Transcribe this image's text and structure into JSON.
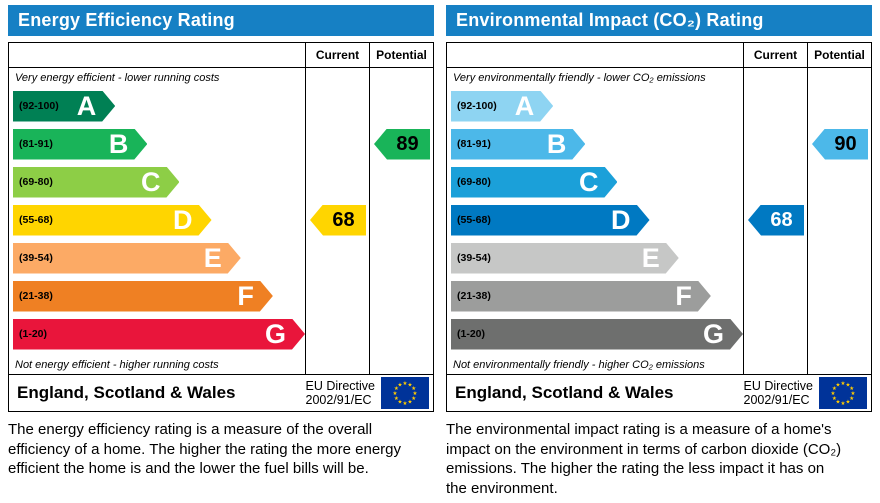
{
  "colors": {
    "header_bg": "#1680c4",
    "header_text": "#ffffff",
    "border": "#000000",
    "eu_flag_bg": "#003399",
    "eu_star": "#ffcc00"
  },
  "panels": [
    {
      "title": "Energy Efficiency Rating",
      "top_note": "Very energy efficient - lower running costs",
      "bottom_note": "Not energy efficient - higher running costs",
      "columns": {
        "current": "Current",
        "potential": "Potential"
      },
      "bands": [
        {
          "letter": "A",
          "range": "(92-100)",
          "color": "#008054",
          "width_pct": 35
        },
        {
          "letter": "B",
          "range": "(81-91)",
          "color": "#19b459",
          "width_pct": 46
        },
        {
          "letter": "C",
          "range": "(69-80)",
          "color": "#8dce46",
          "width_pct": 57
        },
        {
          "letter": "D",
          "range": "(55-68)",
          "color": "#ffd500",
          "width_pct": 68
        },
        {
          "letter": "E",
          "range": "(39-54)",
          "color": "#fcaa65",
          "width_pct": 78
        },
        {
          "letter": "F",
          "range": "(21-38)",
          "color": "#ef8023",
          "width_pct": 89
        },
        {
          "letter": "G",
          "range": "(1-20)",
          "color": "#e9153b",
          "width_pct": 100
        }
      ],
      "current": {
        "value": "68",
        "band_index": 3,
        "color": "#ffd500",
        "text_color": "#000000"
      },
      "potential": {
        "value": "89",
        "band_index": 1,
        "color": "#19b459",
        "text_color": "#000000"
      },
      "footer": {
        "region": "England, Scotland & Wales",
        "directive_line1": "EU Directive",
        "directive_line2": "2002/91/EC"
      },
      "description": "The energy efficiency rating is a measure of the overall efficiency of a home. The higher the rating the more energy efficient the home is and the lower the fuel bills will be."
    },
    {
      "title": "Environmental Impact (CO₂) Rating",
      "top_note": "Very environmentally friendly - lower CO₂ emissions",
      "bottom_note": "Not environmentally friendly - higher CO₂ emissions",
      "columns": {
        "current": "Current",
        "potential": "Potential"
      },
      "bands": [
        {
          "letter": "A",
          "range": "(92-100)",
          "color": "#8ed4f2",
          "width_pct": 35
        },
        {
          "letter": "B",
          "range": "(81-91)",
          "color": "#4cb8e9",
          "width_pct": 46
        },
        {
          "letter": "C",
          "range": "(69-80)",
          "color": "#1ba0d9",
          "width_pct": 57
        },
        {
          "letter": "D",
          "range": "(55-68)",
          "color": "#0079c2",
          "width_pct": 68
        },
        {
          "letter": "E",
          "range": "(39-54)",
          "color": "#c6c7c6",
          "width_pct": 78
        },
        {
          "letter": "F",
          "range": "(21-38)",
          "color": "#9c9d9c",
          "width_pct": 89
        },
        {
          "letter": "G",
          "range": "(1-20)",
          "color": "#6e6f6e",
          "width_pct": 100
        }
      ],
      "current": {
        "value": "68",
        "band_index": 3,
        "color": "#0079c2",
        "text_color": "#ffffff"
      },
      "potential": {
        "value": "90",
        "band_index": 1,
        "color": "#4cb8e9",
        "text_color": "#000000"
      },
      "footer": {
        "region": "England, Scotland & Wales",
        "directive_line1": "EU Directive",
        "directive_line2": "2002/91/EC"
      },
      "description": "The environmental impact rating is a measure of a home's impact on the environment in terms of carbon dioxide (CO₂) emissions. The higher the rating the less impact it has on the environment."
    }
  ],
  "chart_data": [
    {
      "type": "bar",
      "title": "Energy Efficiency Rating",
      "categories": [
        "A (92-100)",
        "B (81-91)",
        "C (69-80)",
        "D (55-68)",
        "E (39-54)",
        "F (21-38)",
        "G (1-20)"
      ],
      "scale": [
        1,
        100
      ],
      "series": [
        {
          "name": "Current",
          "value": 68,
          "band": "D"
        },
        {
          "name": "Potential",
          "value": 89,
          "band": "B"
        }
      ],
      "annotations": [
        "Very energy efficient - lower running costs",
        "Not energy efficient - higher running costs"
      ]
    },
    {
      "type": "bar",
      "title": "Environmental Impact (CO₂) Rating",
      "categories": [
        "A (92-100)",
        "B (81-91)",
        "C (69-80)",
        "D (55-68)",
        "E (39-54)",
        "F (21-38)",
        "G (1-20)"
      ],
      "scale": [
        1,
        100
      ],
      "series": [
        {
          "name": "Current",
          "value": 68,
          "band": "D"
        },
        {
          "name": "Potential",
          "value": 90,
          "band": "B"
        }
      ],
      "annotations": [
        "Very environmentally friendly - lower CO₂ emissions",
        "Not environmentally friendly - higher CO₂ emissions"
      ]
    }
  ]
}
